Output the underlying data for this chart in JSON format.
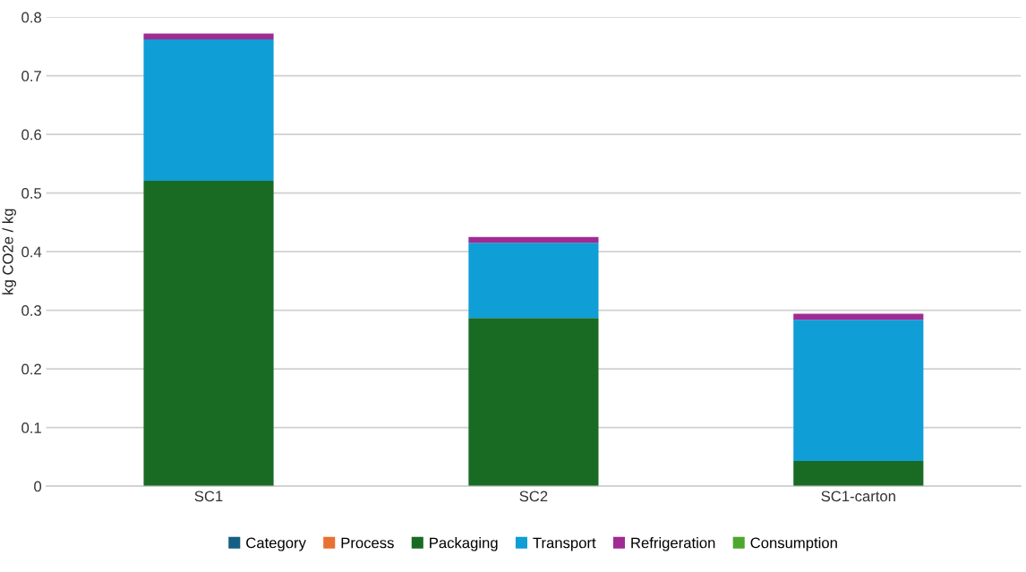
{
  "chart_data": {
    "type": "bar",
    "stacked": true,
    "ylabel": "kg CO2e / kg",
    "categories": [
      "SC1",
      "SC2",
      "SC1-carton"
    ],
    "series": [
      {
        "name": "Category",
        "color": "#156082",
        "values": [
          0,
          0,
          0
        ]
      },
      {
        "name": "Process",
        "color": "#e97132",
        "values": [
          0,
          0,
          0
        ]
      },
      {
        "name": "Packaging",
        "color": "#196b24",
        "values": [
          0.521,
          0.287,
          0.043
        ]
      },
      {
        "name": "Transport",
        "color": "#0f9ed5",
        "values": [
          0.241,
          0.128,
          0.241
        ]
      },
      {
        "name": "Refrigeration",
        "color": "#a02b93",
        "values": [
          0.01,
          0.01,
          0.01
        ]
      },
      {
        "name": "Consumption",
        "color": "#4ea72e",
        "values": [
          0,
          0,
          0
        ]
      }
    ],
    "ylim": [
      0,
      0.8
    ],
    "yticks": [
      0,
      0.1,
      0.2,
      0.3,
      0.4,
      0.5,
      0.6,
      0.7,
      0.8
    ],
    "grid": "y",
    "legend": "bottom"
  }
}
